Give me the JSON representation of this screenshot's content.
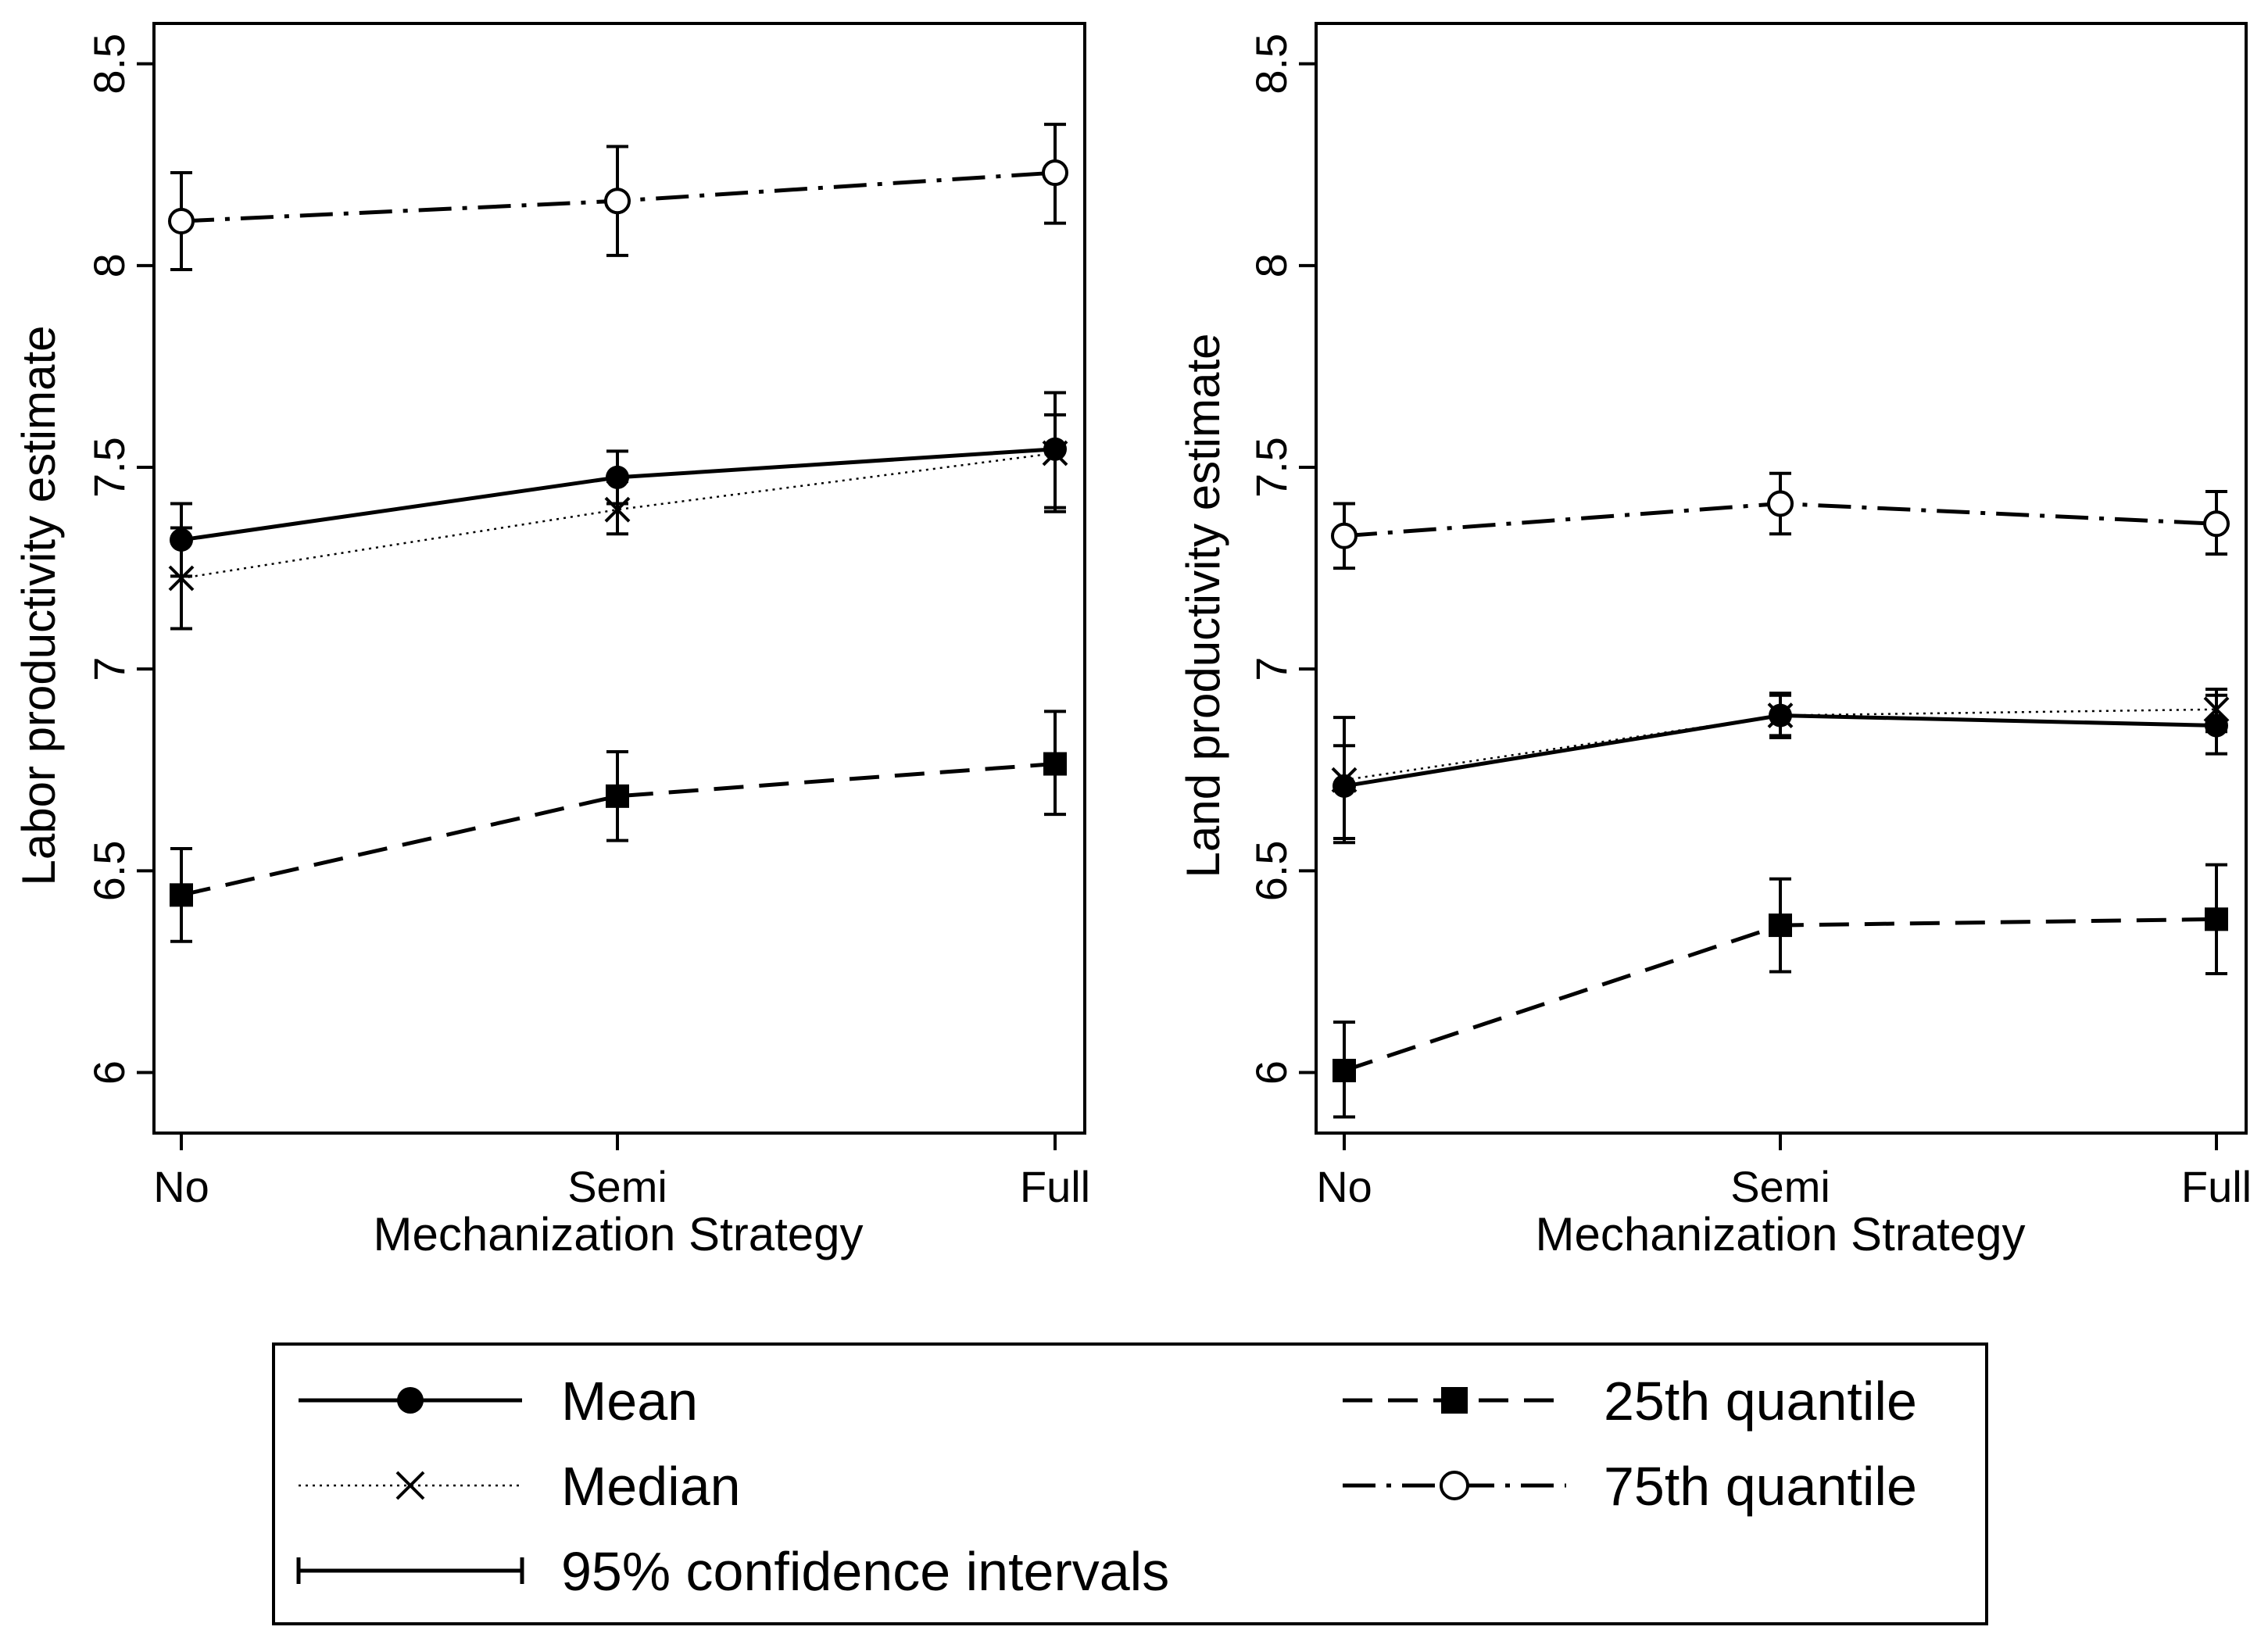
{
  "chart_data": [
    {
      "type": "line",
      "ylabel": "Labor productivity estimate",
      "xlabel": "Mechanization Strategy",
      "categories": [
        "No",
        "Semi",
        "Full"
      ],
      "ylim": [
        5.85,
        8.6
      ],
      "yticks": [
        6,
        6.5,
        7,
        7.5,
        8,
        8.5
      ],
      "ytick_labels": [
        "6",
        "6.5",
        "7",
        "7.5",
        "8",
        "8.5"
      ],
      "series": [
        {
          "key": "mean",
          "name": "Mean",
          "values": [
            7.32,
            7.475,
            7.545
          ],
          "ci_low": [
            7.23,
            7.41,
            7.4
          ],
          "ci_high": [
            7.41,
            7.54,
            7.685
          ]
        },
        {
          "key": "median",
          "name": "Median",
          "values": [
            7.225,
            7.395,
            7.535
          ],
          "ci_low": [
            7.1,
            7.335,
            7.39
          ],
          "ci_high": [
            7.35,
            7.465,
            7.63
          ]
        },
        {
          "key": "q25",
          "name": "25th quantile",
          "values": [
            6.44,
            6.685,
            6.765
          ],
          "ci_low": [
            6.325,
            6.575,
            6.64
          ],
          "ci_high": [
            6.555,
            6.795,
            6.895
          ]
        },
        {
          "key": "q75",
          "name": "75th quantile",
          "values": [
            8.11,
            8.16,
            8.23
          ],
          "ci_low": [
            7.99,
            8.025,
            8.105
          ],
          "ci_high": [
            8.23,
            8.295,
            8.35
          ]
        }
      ]
    },
    {
      "type": "line",
      "ylabel": "Land productivity estimate",
      "xlabel": "Mechanization Strategy",
      "categories": [
        "No",
        "Semi",
        "Full"
      ],
      "ylim": [
        5.85,
        8.6
      ],
      "yticks": [
        6,
        6.5,
        7,
        7.5,
        8,
        8.5
      ],
      "ytick_labels": [
        "6",
        "6.5",
        "7",
        "7.5",
        "8",
        "8.5"
      ],
      "series": [
        {
          "key": "mean",
          "name": "Mean",
          "values": [
            6.71,
            6.885,
            6.86
          ],
          "ci_low": [
            6.58,
            6.835,
            6.79
          ],
          "ci_high": [
            6.88,
            6.935,
            6.935
          ]
        },
        {
          "key": "median",
          "name": "Median",
          "values": [
            6.725,
            6.885,
            6.9
          ],
          "ci_low": [
            6.57,
            6.83,
            6.845
          ],
          "ci_high": [
            6.81,
            6.94,
            6.95
          ]
        },
        {
          "key": "q25",
          "name": "25th quantile",
          "values": [
            6.005,
            6.365,
            6.38
          ],
          "ci_low": [
            5.89,
            6.25,
            6.245
          ],
          "ci_high": [
            6.125,
            6.48,
            6.515
          ]
        },
        {
          "key": "q75",
          "name": "75th quantile",
          "values": [
            7.33,
            7.41,
            7.36
          ],
          "ci_low": [
            7.25,
            7.335,
            7.285
          ],
          "ci_high": [
            7.41,
            7.485,
            7.44
          ]
        }
      ]
    }
  ],
  "legend": {
    "items": [
      {
        "key": "mean",
        "label": "Mean"
      },
      {
        "key": "q25",
        "label": "25th quantile"
      },
      {
        "key": "median",
        "label": "Median"
      },
      {
        "key": "q75",
        "label": "75th quantile"
      },
      {
        "key": "ci",
        "label": "95% confidence intervals"
      }
    ]
  }
}
